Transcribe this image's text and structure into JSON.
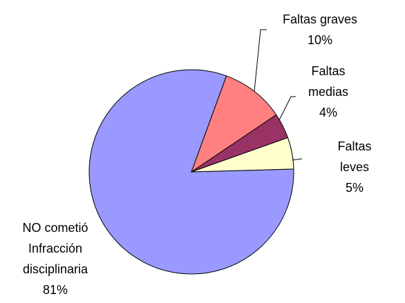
{
  "chart_data": {
    "type": "pie",
    "categories": [
      "Faltas graves",
      "Faltas\nmedias",
      "Faltas leves",
      "NO cometió\nInfracción\ndisciplinaria"
    ],
    "values": [
      10,
      4,
      5,
      81
    ],
    "value_labels": [
      "10%",
      "4%",
      "5%",
      "81%"
    ],
    "colors": [
      "#ff8080",
      "#993366",
      "#ffffcc",
      "#9999ff"
    ]
  }
}
